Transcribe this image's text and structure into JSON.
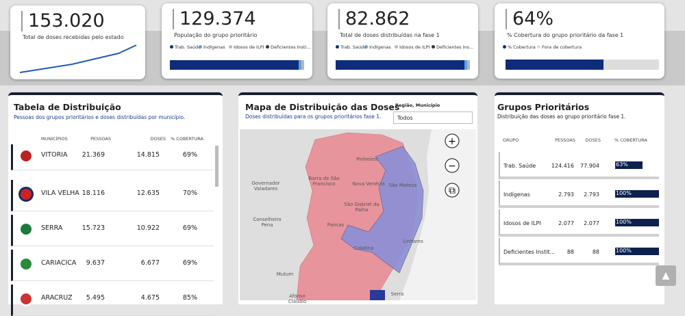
{
  "cards": [
    {
      "value": "153.020",
      "label": "Total de doses recebidas pelo estado"
    },
    {
      "value": "129.374",
      "label": "População do grupo prioritário",
      "legend": [
        "Trab. Saúde",
        "Indígenas",
        "Idosos de ILPI",
        "Deficientes Insti..."
      ]
    },
    {
      "value": "82.862",
      "label": "Total de doses distribuídas na fase 1",
      "legend": [
        "Trab. Saúde",
        "Indígenas",
        "Idosos de ILPI",
        "Deficientes Ins..."
      ]
    },
    {
      "value": "64%",
      "label": "% Cobertura do grupo prioritário da fase 1",
      "legend": [
        "% Cobertura",
        "Fora de cobertura"
      ]
    }
  ],
  "distribution": {
    "title": "Tabela de Distribuição",
    "subtitle": "Pessoas dos grupos prioritários e doses distribuídas por município.",
    "columns": [
      "MUNICÍPIOS",
      "PESSOAS",
      "DOSES",
      "% COBERTURA"
    ],
    "rows": [
      [
        "VITORIA",
        "21.369",
        "14.815",
        "69%"
      ],
      [
        "VILA VELHA",
        "18.116",
        "12.635",
        "70%"
      ],
      [
        "SERRA",
        "15.723",
        "10.922",
        "69%"
      ],
      [
        "CARIACICA",
        "9.637",
        "6.677",
        "69%"
      ],
      [
        "ARACRUZ",
        "5.495",
        "4.675",
        "85%"
      ]
    ]
  },
  "map": {
    "title": "Mapa de Distribuição das Doses",
    "subtitle": "Doses distribuídas para os  grupos prioritários fase 1.",
    "filter_label": "Região, Município",
    "filter_value": "Todos",
    "places": [
      "Governador Valadares",
      "Conselheiro Pena",
      "Mutum",
      "Barra de São Francisco",
      "Nova Venécia",
      "São Mateus",
      "Pinheiros",
      "São Gabriel da Palha",
      "Pancas",
      "Colatina",
      "Linhares",
      "Afonso Cláudio",
      "Serra"
    ]
  },
  "groups": {
    "title": "Grupos Prioritários",
    "subtitle": "Distribuição das doses ao grupo prioritário fase 1.",
    "columns": [
      "GRUPO",
      "PESSOAS",
      "DOSES",
      "% COBERTURA"
    ],
    "rows": [
      [
        "Trab. Saúde",
        "124.416",
        "77.904",
        "63%"
      ],
      [
        "Indígenas",
        "2.793",
        "2.793",
        "100%"
      ],
      [
        "Idosos de ILPI",
        "2.077",
        "2.077",
        "100%"
      ],
      [
        "Deficientes Instit...",
        "88",
        "88",
        "100%"
      ]
    ]
  }
}
